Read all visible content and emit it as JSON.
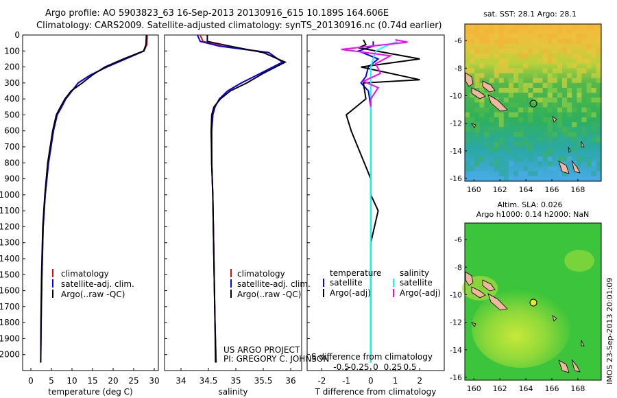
{
  "header": {
    "line1": "Argo profile: AO 5903823_63 16-Sep-2013 20130916_615 10.189S 164.606E",
    "line2": "Climatology: CARS2009. Satellite-adjusted climatology: synTS_20130916.nc (0.74d earlier)"
  },
  "side_note": "IMOS 23-Sep-2013 20:01:09",
  "credits": {
    "line1": "US ARGO PROJECT",
    "line2": "PI: GREGORY C. JOHNSON"
  },
  "colors": {
    "climatology": "#ff0000",
    "satellite": "#0000ff",
    "argo": "#000000",
    "salinity_satellite": "#00ffff",
    "salinity_argo": "#ff00ff"
  },
  "chart_data": [
    {
      "type": "line",
      "id": "temperature-profile",
      "xlabel": "temperature (deg C)",
      "ylabel": "",
      "xlim": [
        -2,
        31
      ],
      "ylim": [
        2100,
        0
      ],
      "xticks": [
        0,
        5,
        10,
        15,
        20,
        25,
        30
      ],
      "yticks": [
        0,
        100,
        200,
        300,
        400,
        500,
        600,
        700,
        800,
        900,
        1000,
        1100,
        1200,
        1300,
        1400,
        1500,
        1600,
        1700,
        1800,
        1900,
        2000
      ],
      "legend": [
        "climatology",
        "satellite-adj. clim.",
        "Argo(..raw -QC)"
      ],
      "series": [
        {
          "name": "climatology",
          "color": "#ff0000",
          "x": [
            28.3,
            28.2,
            27.5,
            23,
            18.5,
            14.5,
            11.5,
            10,
            8.5,
            7.5,
            6.4,
            5.5,
            4.3,
            3.5,
            3,
            2.7,
            2.5,
            2.4
          ],
          "y": [
            0,
            60,
            100,
            150,
            200,
            250,
            300,
            350,
            400,
            450,
            500,
            600,
            800,
            1000,
            1200,
            1500,
            1800,
            2050
          ]
        },
        {
          "name": "satellite-adj. clim.",
          "color": "#0000ff",
          "x": [
            28.1,
            28.0,
            27.5,
            23,
            18.5,
            14.5,
            11.5,
            10,
            8.5,
            7.5,
            6.4,
            5.5,
            4.3,
            3.5,
            3,
            2.7,
            2.5,
            2.4
          ],
          "y": [
            0,
            60,
            100,
            150,
            200,
            250,
            300,
            350,
            400,
            450,
            500,
            600,
            800,
            1000,
            1200,
            1500,
            1800,
            2050
          ]
        },
        {
          "name": "Argo(..raw -QC)",
          "color": "#000000",
          "x": [
            28.1,
            28.0,
            27.4,
            22.5,
            18,
            15,
            12.5,
            9.8,
            8.3,
            7.2,
            6.2,
            5.3,
            4.1,
            3.4,
            2.9,
            2.6,
            2.45,
            2.4
          ],
          "y": [
            0,
            60,
            100,
            150,
            200,
            250,
            300,
            350,
            400,
            450,
            500,
            600,
            800,
            1000,
            1200,
            1500,
            1800,
            2050
          ]
        }
      ]
    },
    {
      "type": "line",
      "id": "salinity-profile",
      "xlabel": "salinity",
      "ylabel": "",
      "xlim": [
        33.7,
        36.2
      ],
      "ylim": [
        2100,
        0
      ],
      "xticks": [
        34,
        34.5,
        35,
        35.5,
        36
      ],
      "xticklabels": [
        "34",
        "34.5",
        "35",
        "35.5",
        "36"
      ],
      "legend": [
        "climatology",
        "satellite-adj. clim.",
        "Argo(..raw -QC)"
      ],
      "series": [
        {
          "name": "climatology",
          "color": "#ff0000",
          "x": [
            34.35,
            34.4,
            34.75,
            35.6,
            35.85,
            35.45,
            35.1,
            34.85,
            34.7,
            34.62,
            34.58,
            34.56,
            34.56,
            34.58,
            34.6,
            34.62,
            34.64
          ],
          "y": [
            0,
            40,
            70,
            110,
            170,
            240,
            300,
            350,
            400,
            450,
            500,
            600,
            800,
            1000,
            1400,
            1800,
            2050
          ]
        },
        {
          "name": "satellite-adj. clim.",
          "color": "#0000ff",
          "x": [
            34.3,
            34.35,
            34.7,
            35.6,
            35.85,
            35.45,
            35.1,
            34.85,
            34.7,
            34.62,
            34.58,
            34.56,
            34.56,
            34.58,
            34.6,
            34.62,
            34.64
          ],
          "y": [
            0,
            40,
            70,
            110,
            170,
            240,
            300,
            350,
            400,
            450,
            500,
            600,
            800,
            1000,
            1400,
            1800,
            2050
          ]
        },
        {
          "name": "Argo(..raw -QC)",
          "color": "#000000",
          "x": [
            34.48,
            34.48,
            34.9,
            35.5,
            35.9,
            35.5,
            35.2,
            34.9,
            34.72,
            34.6,
            34.56,
            34.55,
            34.56,
            34.58,
            34.6,
            34.62,
            34.63
          ],
          "y": [
            0,
            40,
            70,
            110,
            170,
            240,
            300,
            350,
            400,
            450,
            500,
            600,
            800,
            1000,
            1400,
            1800,
            2050
          ]
        }
      ]
    },
    {
      "type": "line",
      "id": "difference-profile",
      "xlabel": "T difference from climatology",
      "xlabel_top": "S difference from climatology",
      "ylabel": "",
      "xlim": [
        -2.6,
        3
      ],
      "ylim": [
        2100,
        0
      ],
      "xticks": [
        -2,
        -1,
        0,
        1,
        2
      ],
      "xticks_salinity": [
        -0.5,
        -0.25,
        0,
        0.25,
        0.5
      ],
      "legend": {
        "temperature_header": "temperature",
        "salinity_header": "salinity",
        "t_satellite": "satellite",
        "t_argo": "Argo(-adj)",
        "s_satellite": "satellite",
        "s_argo": "Argo(-adj)"
      },
      "series": [
        {
          "name": "temperature satellite",
          "color": "#0000ff",
          "x": [
            0.1,
            0.1,
            -0.5,
            0.3,
            -0.1,
            -0.2,
            -0.4,
            -0.1,
            0,
            0,
            0,
            0,
            0,
            0
          ],
          "y": [
            40,
            70,
            100,
            150,
            200,
            260,
            300,
            350,
            450,
            600,
            900,
            1300,
            1700,
            2050
          ]
        },
        {
          "name": "temperature Argo(-adj)",
          "color": "#000000",
          "x": [
            -0.3,
            -0.2,
            -0.5,
            2.0,
            -0.4,
            2.0,
            -0.3,
            -0.2,
            -1.0,
            -0.8,
            -0.4,
            0,
            0,
            0.3,
            0,
            0,
            0,
            0
          ],
          "y": [
            30,
            60,
            80,
            150,
            200,
            280,
            300,
            400,
            500,
            600,
            750,
            900,
            1000,
            1100,
            1300,
            1500,
            1800,
            2050
          ]
        },
        {
          "name": "salinity satellite",
          "color": "#00ffff",
          "x": [
            1.1,
            0.6,
            0.2,
            0.1,
            0,
            0,
            0,
            0,
            0
          ],
          "y": [
            40,
            70,
            100,
            150,
            200,
            300,
            600,
            1200,
            2050
          ]
        },
        {
          "name": "salinity Argo(-adj)",
          "color": "#ff00ff",
          "x": [
            1.0,
            1.5,
            -1.2,
            0.8,
            0.2,
            0.4,
            -0.3,
            0.3,
            0,
            0
          ],
          "y": [
            30,
            45,
            90,
            130,
            180,
            240,
            290,
            330,
            400,
            450
          ]
        }
      ]
    },
    {
      "type": "heatmap",
      "id": "sst-map",
      "title": "sat. SST: 28.1  Argo: 28.1",
      "xlim": [
        159.3,
        169.8
      ],
      "ylim": [
        -16.2,
        -4.8
      ],
      "xticks": [
        160,
        162,
        164,
        166,
        168
      ],
      "yticks": [
        -6,
        -8,
        -10,
        -12,
        -14,
        -16
      ],
      "point": {
        "lon": 164.606,
        "lat": -10.189
      }
    },
    {
      "type": "heatmap",
      "id": "sla-map",
      "title": "Altim. SLA: 0.026",
      "subtitle": "Argo h1000: 0.14 h2000: NaN",
      "xlim": [
        159.3,
        169.8
      ],
      "ylim": [
        -16.2,
        -4.8
      ],
      "xticks": [
        160,
        162,
        164,
        166,
        168
      ],
      "yticks": [
        -6,
        -8,
        -10,
        -12,
        -14,
        -16
      ],
      "point": {
        "lon": 164.606,
        "lat": -10.189
      }
    }
  ]
}
